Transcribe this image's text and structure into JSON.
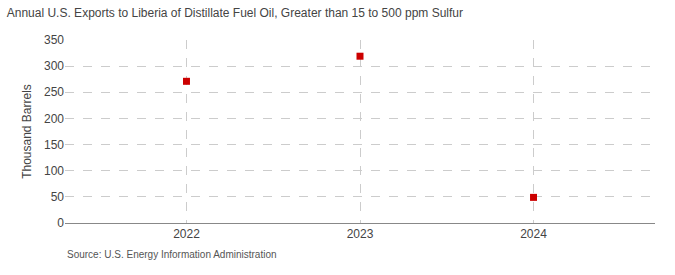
{
  "chart_data": {
    "type": "scatter",
    "title": "Annual U.S. Exports to Liberia of Distillate Fuel Oil, Greater than 15 to 500 ppm Sulfur",
    "ylabel": "Thousand Barrels",
    "annotations": [
      "Source: U.S. Energy Information Administration"
    ],
    "x": [
      2022,
      2023,
      2024
    ],
    "values": [
      271,
      319,
      49
    ],
    "color": "#cc0000",
    "marker": "square",
    "xlim": [
      2021.3,
      2024.7
    ],
    "xticks": [
      2022,
      2023,
      2024
    ],
    "ylim": [
      0,
      350
    ],
    "yticks": [
      0,
      50,
      100,
      150,
      200,
      250,
      300,
      350
    ],
    "grid": true
  }
}
